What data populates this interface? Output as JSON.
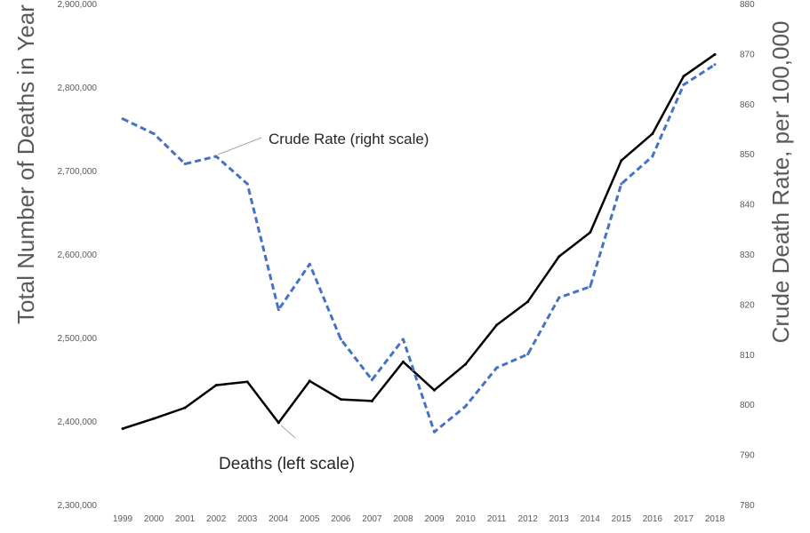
{
  "chart_data": {
    "type": "line",
    "title": "",
    "xlabel": "",
    "ylabel_left": "Total Number of Deaths in Year",
    "ylabel_right": "Crude Death Rate, per 100,000",
    "grid": false,
    "years": [
      "1999",
      "2000",
      "2001",
      "2002",
      "2003",
      "2004",
      "2005",
      "2006",
      "2007",
      "2008",
      "2009",
      "2010",
      "2011",
      "2012",
      "2013",
      "2014",
      "2015",
      "2016",
      "2017",
      "2018"
    ],
    "left_axis": {
      "range": [
        2300000,
        2900000
      ],
      "ticks": [
        2300000,
        2400000,
        2500000,
        2600000,
        2700000,
        2800000,
        2900000
      ],
      "tick_labels": [
        "2,300,000",
        "2,400,000",
        "2,500,000",
        "2,600,000",
        "2,700,000",
        "2,800,000",
        "2,900,000"
      ]
    },
    "right_axis": {
      "range": [
        780,
        880
      ],
      "ticks": [
        780,
        790,
        800,
        810,
        820,
        830,
        840,
        850,
        860,
        870,
        880
      ],
      "tick_labels": [
        "780",
        "790",
        "800",
        "810",
        "820",
        "830",
        "840",
        "850",
        "860",
        "870",
        "880"
      ]
    },
    "series": [
      {
        "name": "Deaths",
        "axis": "left",
        "style": "solid",
        "color": "#000000",
        "values": [
          2391000,
          2403000,
          2416000,
          2443000,
          2447000,
          2398000,
          2448000,
          2426000,
          2424000,
          2471000,
          2437000,
          2468000,
          2515000,
          2543000,
          2597000,
          2626000,
          2712000,
          2744000,
          2813000,
          2839000
        ]
      },
      {
        "name": "Crude Rate",
        "axis": "right",
        "style": "dashed",
        "color": "#4472C4",
        "values": [
          857.0,
          854.0,
          848.0,
          849.5,
          844.0,
          818.9,
          828.0,
          813.0,
          804.9,
          813.0,
          794.5,
          799.6,
          807.3,
          810.0,
          821.3,
          823.5,
          844.0,
          849.5,
          863.8,
          867.8
        ]
      }
    ],
    "annotations": [
      {
        "text": "Crude Rate (right scale)",
        "series": "Crude Rate",
        "year": "2002"
      },
      {
        "text": "Deaths (left scale)",
        "series": "Deaths",
        "year": "2004"
      }
    ]
  }
}
